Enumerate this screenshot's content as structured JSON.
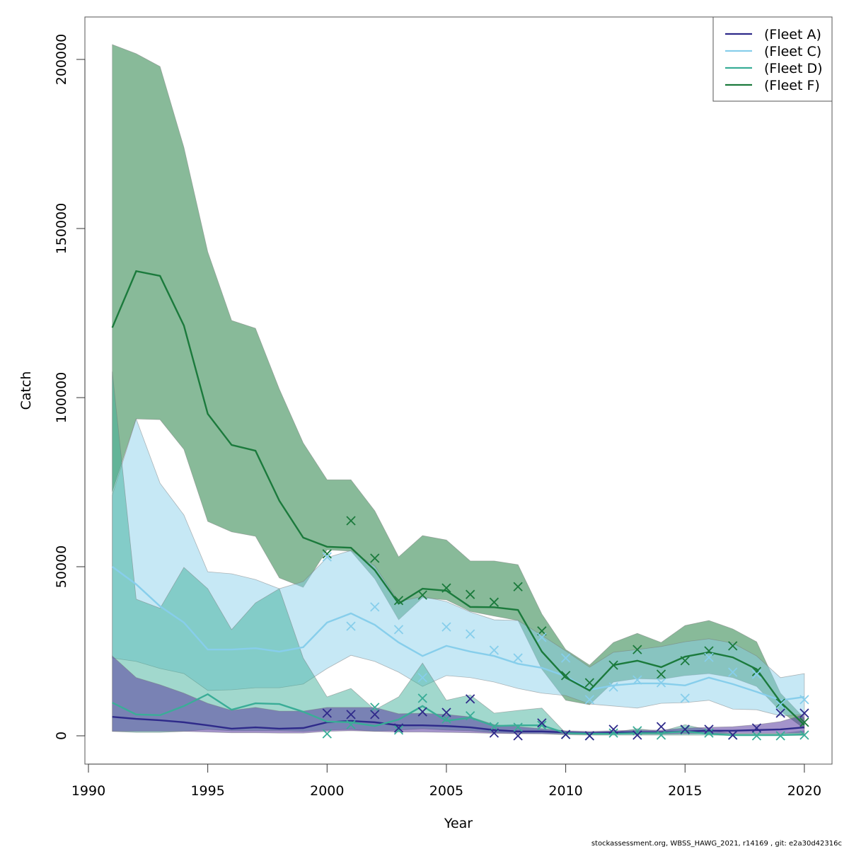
{
  "footer": "stockassessment.org, WBSS_HAWG_2021, r14169 , git: e2a30d42316c",
  "chart_data": {
    "type": "line",
    "title": "",
    "xlabel": "Year",
    "ylabel": "Catch",
    "xlim": [
      1990,
      2021
    ],
    "ylim": [
      -8000,
      212000
    ],
    "xticks": [
      1990,
      1995,
      2000,
      2005,
      2010,
      2015,
      2020
    ],
    "yticks": [
      0,
      50000,
      100000,
      150000,
      200000
    ],
    "grid": false,
    "legend_position": "top-right",
    "x": [
      1991,
      1992,
      1993,
      1994,
      1995,
      1996,
      1997,
      1998,
      1999,
      2000,
      2001,
      2002,
      2003,
      2004,
      2005,
      2006,
      2007,
      2008,
      2009,
      2010,
      2011,
      2012,
      2013,
      2014,
      2015,
      2016,
      2017,
      2018,
      2019,
      2020
    ],
    "obs_x": [
      2000,
      2001,
      2002,
      2003,
      2004,
      2005,
      2006,
      2007,
      2008,
      2009,
      2010,
      2011,
      2012,
      2013,
      2014,
      2015,
      2016,
      2017,
      2018,
      2019,
      2020
    ],
    "series": [
      {
        "name": "(Fleet F)",
        "color": "#1b7a3c",
        "band_color": "rgba(27,122,60,0.52)",
        "values": [
          120700,
          137400,
          136000,
          121300,
          95200,
          86000,
          84300,
          69500,
          58600,
          55900,
          55600,
          49000,
          39100,
          43500,
          42900,
          38100,
          38000,
          37200,
          24900,
          17200,
          13400,
          20900,
          22200,
          20300,
          23400,
          24700,
          23200,
          19700,
          10000,
          3200
        ],
        "upper": [
          204400,
          201700,
          197900,
          174000,
          143100,
          122800,
          120500,
          102500,
          86600,
          75700,
          75700,
          66500,
          52900,
          59200,
          57900,
          51700,
          51700,
          50600,
          36000,
          25500,
          20900,
          27600,
          30300,
          27600,
          32600,
          34100,
          31600,
          27800,
          12600,
          5200
        ],
        "lower": [
          72200,
          93700,
          93500,
          84700,
          63400,
          60300,
          59000,
          46700,
          43900,
          55000,
          54600,
          46400,
          34300,
          40800,
          40200,
          36800,
          35400,
          34100,
          19700,
          10500,
          9200,
          15900,
          16900,
          16700,
          17800,
          18400,
          17200,
          14600,
          7300,
          2100
        ],
        "observed": [
          53800,
          63600,
          52500,
          40000,
          41600,
          43700,
          41800,
          39500,
          44100,
          31000,
          17800,
          15700,
          20900,
          25500,
          18200,
          22200,
          25100,
          26600,
          19000,
          9600,
          4000
        ]
      },
      {
        "name": "(Fleet C)",
        "color": "#87ceeb",
        "band_color": "rgba(135,206,235,0.48)",
        "values": [
          50000,
          44800,
          38300,
          33500,
          25500,
          25500,
          25900,
          24900,
          26200,
          33500,
          36200,
          32800,
          27600,
          23600,
          26600,
          24900,
          23600,
          21300,
          20100,
          17600,
          13600,
          14900,
          15500,
          15500,
          14900,
          17200,
          15300,
          13000,
          10500,
          11500
        ],
        "upper": [
          71100,
          93700,
          74700,
          65300,
          48500,
          47900,
          46200,
          43500,
          45600,
          52700,
          54800,
          50200,
          39700,
          41200,
          39700,
          36600,
          34300,
          34100,
          29700,
          25100,
          20300,
          24700,
          25500,
          26400,
          27800,
          28700,
          27400,
          23600,
          17200,
          18400
        ],
        "lower": [
          23000,
          22000,
          19900,
          18400,
          13400,
          13600,
          14200,
          14200,
          15300,
          19900,
          23800,
          22000,
          18800,
          14600,
          17800,
          17200,
          15900,
          14000,
          12600,
          11900,
          9400,
          8800,
          8200,
          9600,
          9800,
          10500,
          7900,
          7700,
          5900,
          6300
        ],
        "observed": [
          52900,
          32400,
          38100,
          31400,
          17200,
          32200,
          30100,
          25300,
          23000,
          29100,
          23000,
          10700,
          14400,
          16500,
          15700,
          11100,
          23200,
          18800,
          18200,
          9200,
          10700
        ]
      },
      {
        "name": "(Fleet D)",
        "color": "#3aad97",
        "band_color": "rgba(58,173,151,0.48)",
        "values": [
          9800,
          6300,
          6100,
          8800,
          12300,
          7700,
          9600,
          9400,
          7100,
          4200,
          4000,
          2900,
          4800,
          8800,
          4400,
          5400,
          2900,
          3100,
          3100,
          800,
          600,
          600,
          800,
          800,
          1300,
          600,
          200,
          200,
          200,
          400
        ],
        "upper": [
          107700,
          40400,
          37700,
          49800,
          43500,
          31400,
          39300,
          43500,
          23000,
          11500,
          14000,
          7700,
          11500,
          21500,
          10500,
          12100,
          6700,
          7500,
          8200,
          800,
          800,
          1000,
          2100,
          1300,
          3300,
          1700,
          600,
          600,
          600,
          1500
        ],
        "lower": [
          1300,
          1000,
          1000,
          1300,
          1900,
          1500,
          1500,
          1500,
          1300,
          1700,
          1900,
          1300,
          1700,
          2100,
          1700,
          1500,
          900,
          700,
          600,
          300,
          200,
          200,
          200,
          200,
          200,
          200,
          100,
          100,
          100,
          100
        ],
        "observed": [
          600,
          3300,
          8400,
          1700,
          11100,
          5000,
          5900,
          2700,
          2500,
          3100,
          400,
          0,
          800,
          1500,
          200,
          1700,
          800,
          200,
          0,
          0,
          200
        ]
      },
      {
        "name": "(Fleet A)",
        "color": "#2e2a8a",
        "band_color": "rgba(90,60,160,0.55)",
        "values": [
          5600,
          5000,
          4600,
          4000,
          3100,
          2100,
          2500,
          2100,
          2300,
          4000,
          4400,
          4000,
          3100,
          3100,
          2900,
          2500,
          1700,
          1300,
          1300,
          1000,
          800,
          1000,
          1000,
          1000,
          1300,
          1500,
          1500,
          1700,
          1900,
          2500
        ],
        "upper": [
          23600,
          17200,
          15100,
          12600,
          9600,
          7500,
          8400,
          7300,
          7300,
          8400,
          8400,
          8400,
          6500,
          6700,
          6300,
          5600,
          3300,
          2700,
          2100,
          1500,
          1300,
          1500,
          1700,
          1700,
          2300,
          2500,
          2700,
          3300,
          4200,
          6300
        ],
        "lower": [
          1300,
          1300,
          1300,
          1300,
          1100,
          900,
          900,
          800,
          800,
          1300,
          1500,
          1300,
          1100,
          1100,
          1000,
          900,
          700,
          600,
          600,
          500,
          400,
          500,
          500,
          500,
          600,
          700,
          700,
          700,
          700,
          800
        ],
        "observed": [
          6700,
          6300,
          6300,
          2300,
          7100,
          6900,
          10900,
          800,
          0,
          3800,
          400,
          0,
          1900,
          200,
          2700,
          1900,
          1900,
          200,
          2300,
          6700,
          6700
        ]
      }
    ],
    "legend": [
      {
        "name": "(Fleet A)",
        "color": "#2e2a8a"
      },
      {
        "name": "(Fleet C)",
        "color": "#87ceeb"
      },
      {
        "name": "(Fleet D)",
        "color": "#3aad97"
      },
      {
        "name": "(Fleet F)",
        "color": "#1b7a3c"
      }
    ]
  }
}
